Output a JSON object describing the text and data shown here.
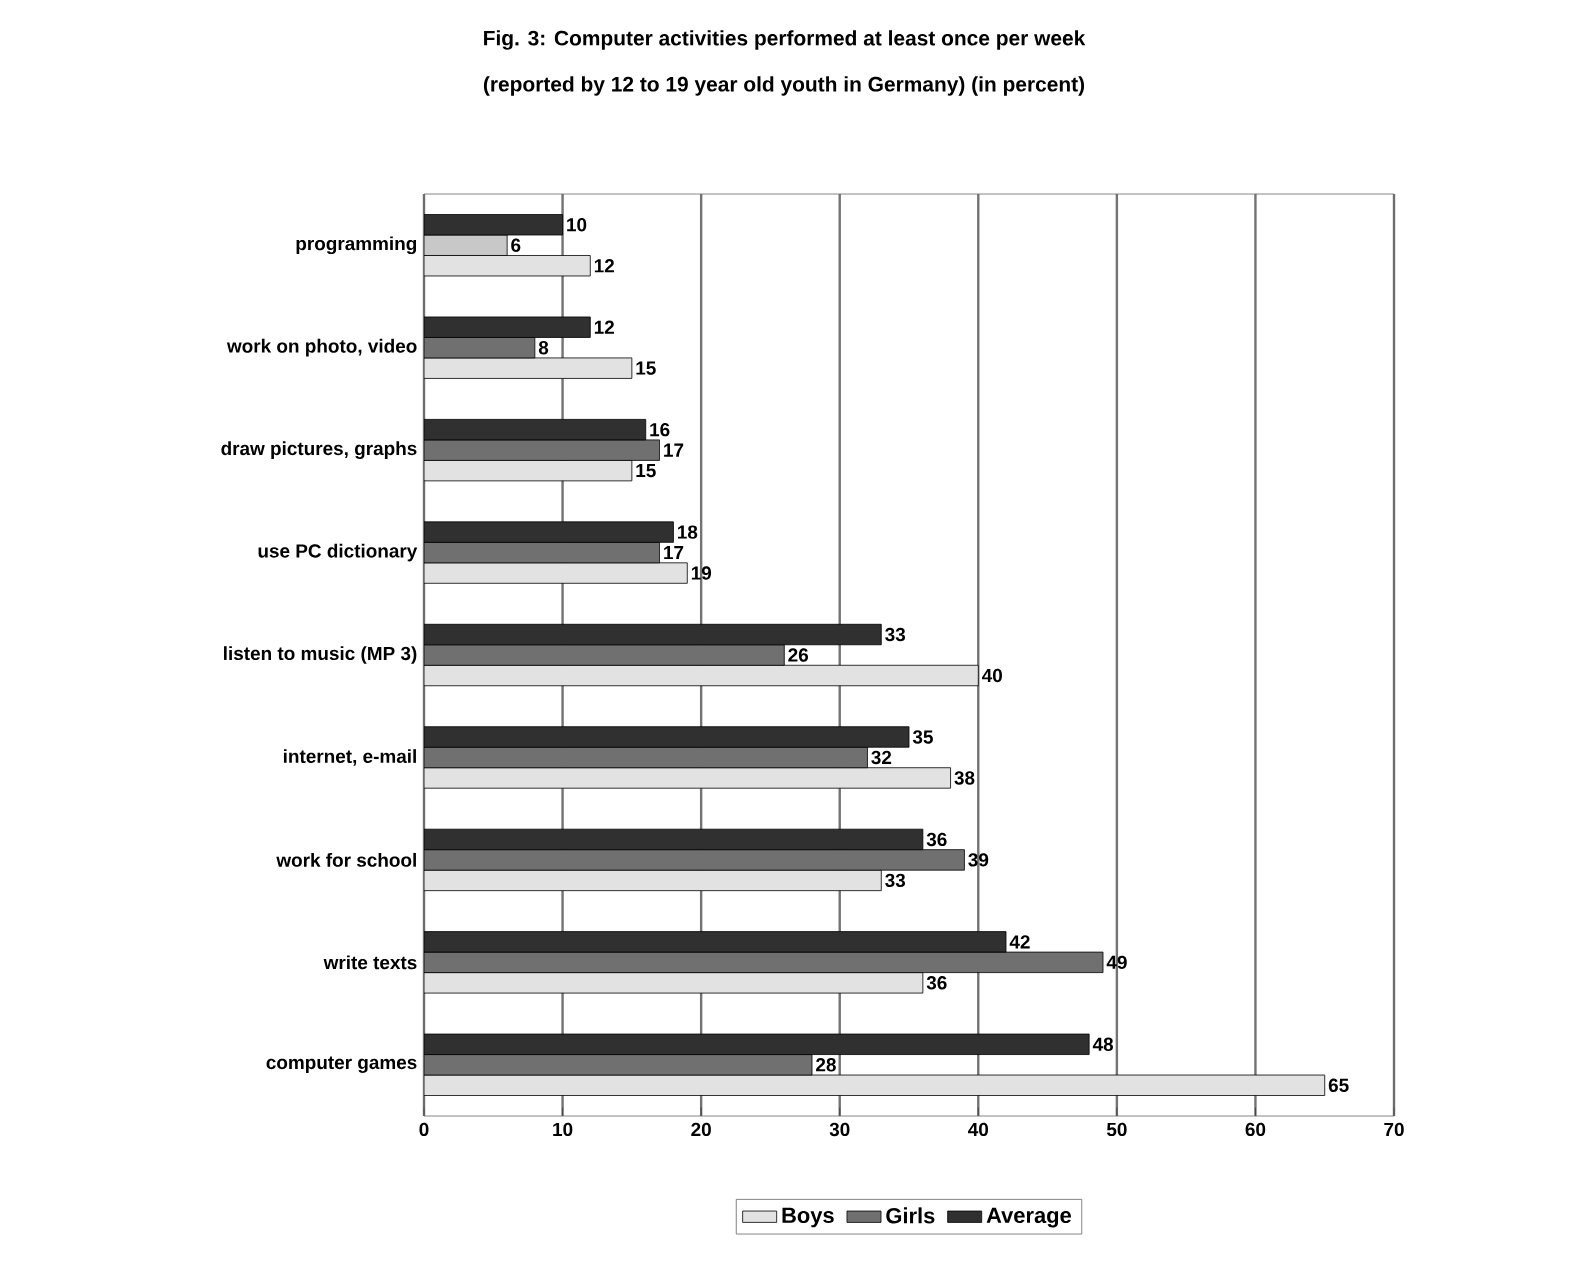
{
  "chart_data": {
    "type": "bar",
    "orientation": "horizontal",
    "title": "Fig. 3: Computer activities performed at least once per week",
    "subtitle": "(reported by 12 to 19 year old youth in Germany) (in percent)",
    "categories": [
      "programming",
      "work on photo, video",
      "draw pictures, graphs",
      "use PC dictionary",
      "listen to music (MP 3)",
      "internet, e-mail",
      "work for school",
      "write texts",
      "computer games"
    ],
    "series": [
      {
        "name": "Boys",
        "color": "#e2e2e2",
        "values": [
          12,
          15,
          15,
          19,
          40,
          38,
          33,
          36,
          65
        ]
      },
      {
        "name": "Girls",
        "color": "#707070",
        "colors": [
          "#c8c8c8",
          "#707070",
          "#707070",
          "#707070",
          "#707070",
          "#707070",
          "#707070",
          "#707070",
          "#707070"
        ],
        "values": [
          6,
          8,
          17,
          17,
          26,
          32,
          39,
          49,
          28
        ]
      },
      {
        "name": "Average",
        "color": "#303030",
        "values": [
          10,
          12,
          16,
          18,
          33,
          35,
          36,
          42,
          48
        ]
      }
    ],
    "xlim": [
      0,
      70
    ],
    "xticks": [
      0,
      10,
      20,
      30,
      40,
      50,
      60,
      70
    ],
    "grid": "x",
    "legend": "bottom",
    "data_labels": true
  }
}
